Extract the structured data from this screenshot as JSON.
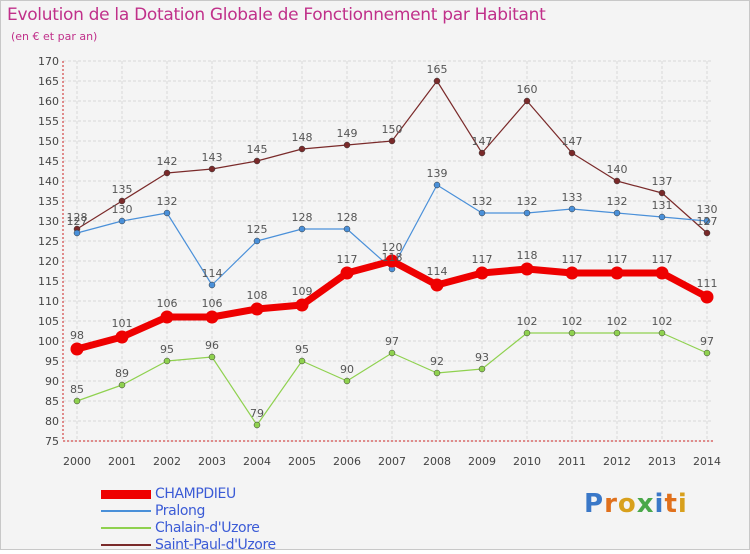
{
  "title": "Evolution de la Dotation Globale de Fonctionnement par Habitant",
  "subtitle": "(en € et par an)",
  "logo": {
    "letters": [
      "P",
      "r",
      "o",
      "x",
      "i",
      "t",
      "i"
    ]
  },
  "colors": {
    "title": "#c0308a",
    "axis_text": "#444444",
    "label_text": "#555555",
    "legend_text": "#3b5bd6"
  },
  "chart_data": {
    "type": "line",
    "title": "Evolution de la Dotation Globale de Fonctionnement par Habitant",
    "subtitle": "(en € et par an)",
    "x": [
      "2000",
      "2001",
      "2002",
      "2003",
      "2004",
      "2005",
      "2006",
      "2007",
      "2008",
      "2009",
      "2010",
      "2011",
      "2012",
      "2013",
      "2014"
    ],
    "ylim": [
      75,
      170
    ],
    "yticks": [
      75,
      80,
      85,
      90,
      95,
      100,
      105,
      110,
      115,
      120,
      125,
      130,
      135,
      140,
      145,
      150,
      155,
      160,
      165,
      170
    ],
    "grid": true,
    "legend_position": "bottom-left",
    "series": [
      {
        "name": "CHAMPDIEU",
        "color": "#ee0000",
        "values": [
          98,
          101,
          106,
          106,
          108,
          109,
          117,
          120,
          114,
          117,
          118,
          117,
          117,
          117,
          111
        ]
      },
      {
        "name": "Pralong",
        "color": "#4a90d9",
        "values": [
          127,
          130,
          132,
          114,
          125,
          128,
          128,
          118,
          139,
          132,
          132,
          133,
          132,
          131,
          130
        ]
      },
      {
        "name": "Chalain-d'Uzore",
        "color": "#8fd14f",
        "values": [
          85,
          89,
          95,
          96,
          79,
          95,
          90,
          97,
          92,
          93,
          102,
          102,
          102,
          102,
          97
        ]
      },
      {
        "name": "Saint-Paul-d'Uzore",
        "color": "#7a2a2a",
        "values": [
          128,
          135,
          142,
          143,
          145,
          148,
          149,
          150,
          165,
          147,
          160,
          147,
          140,
          137,
          127
        ]
      }
    ]
  }
}
